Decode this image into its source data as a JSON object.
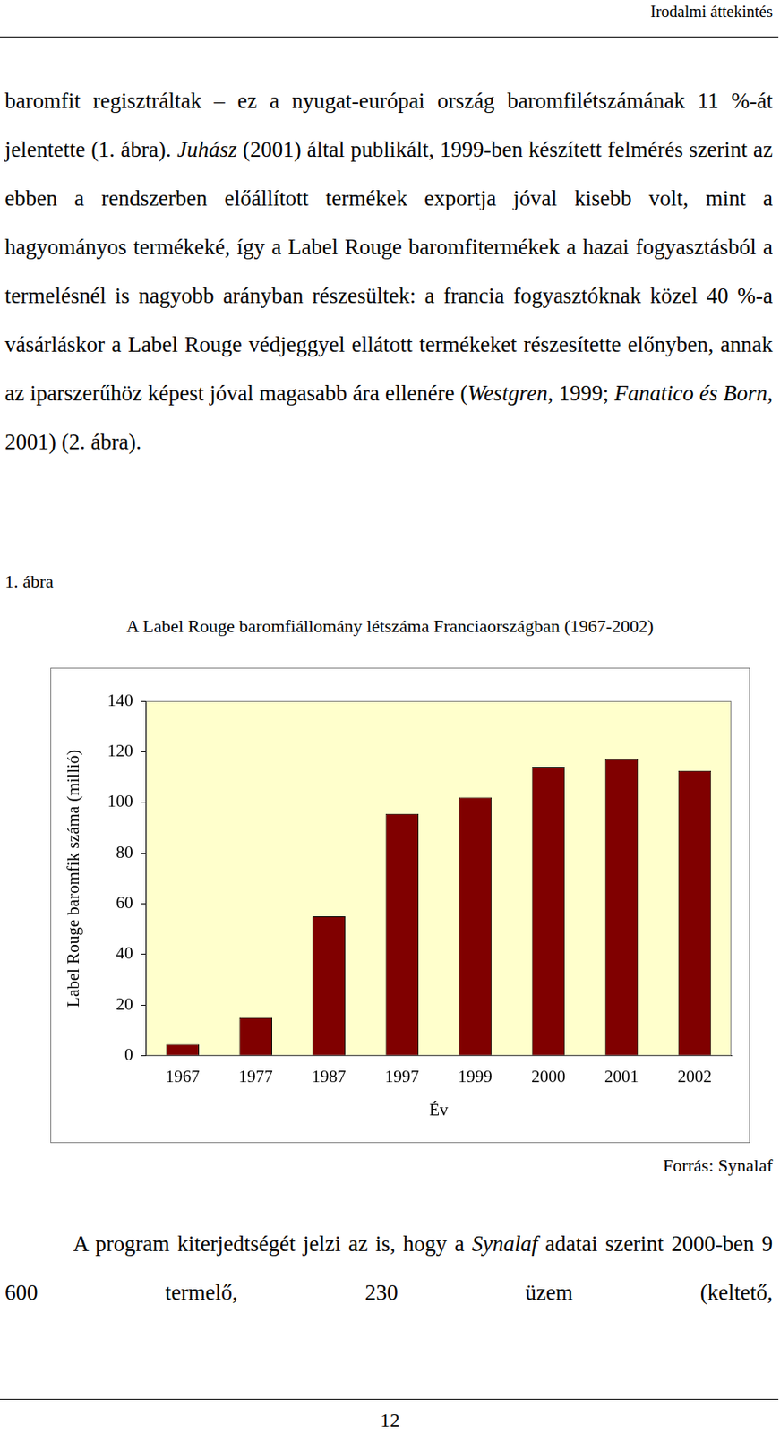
{
  "header": "Irodalmi áttekintés",
  "paragraph_before": [
    {
      "text": "baromfit regisztráltak – ez a nyugat-európai ország baromfilétszámának 11 %-át jelentette (1. ábra). ",
      "italic": false
    },
    {
      "text": "Juhász",
      "italic": true
    },
    {
      "text": " (2001) által publikált, 1999-ben készített felmérés szerint az ebben a rendszerben előállított termékek exportja jóval kisebb volt, mint a hagyományos termékeké, így a Label Rouge baromfitermékek a hazai fogyasztásból a termelésnél is nagyobb arányban részesültek: a francia fogyasztóknak közel 40 %-a vásárláskor a Label Rouge védjeggyel ellátott termékeket részesítette előnyben, annak az iparszerűhöz képest jóval magasabb ára ellenére (",
      "italic": false
    },
    {
      "text": "Westgren",
      "italic": true
    },
    {
      "text": ", 1999; ",
      "italic": false
    },
    {
      "text": "Fanatico és Born",
      "italic": true
    },
    {
      "text": ", 2001) (2. ábra).",
      "italic": false
    }
  ],
  "figure_label": "1. ábra",
  "chart_data": {
    "type": "bar",
    "title": "A Label Rouge baromfiállomány létszáma Franciaországban (1967-2002)",
    "x_label": "Év",
    "y_label": "Label Rouge baromfik száma (millió)",
    "categories": [
      "1967",
      "1977",
      "1987",
      "1997",
      "1999",
      "2000",
      "2001",
      "2002"
    ],
    "values": [
      4.5,
      15,
      55,
      95.5,
      102,
      114,
      117,
      112.5
    ],
    "color": "#800000",
    "ylim": [
      0,
      140
    ],
    "yticks": [
      0,
      20,
      40,
      60,
      80,
      100,
      120,
      140
    ],
    "grid": false,
    "legend": null
  },
  "source": "Forrás: Synalaf",
  "paragraph_after": [
    {
      "text": "A program kiterjedtségét jelzi az is, hogy a ",
      "italic": false
    },
    {
      "text": "Synalaf",
      "italic": true
    },
    {
      "text": " adatai szerint 2000-ben 9 600 termelő, 230 üzem (keltető,",
      "italic": false
    }
  ],
  "page_number": 12
}
